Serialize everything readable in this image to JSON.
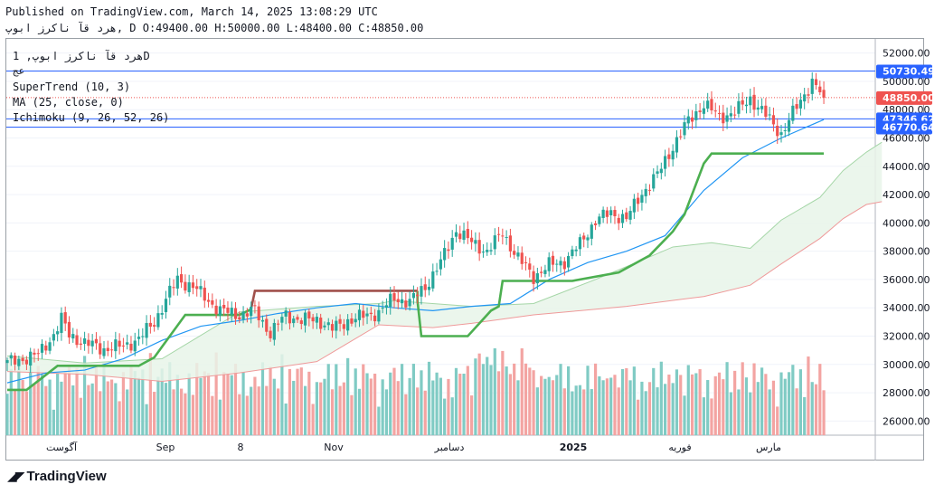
{
  "header": {
    "published": "Published on TradingView.com, March 14, 2025 13:08:29 UTC",
    "ohlc": "هرد قآ ناكرز ابوپ, D O:49400.00 H:50000.00 L:48400.00 C:48850.00"
  },
  "legend": {
    "symbol": "هرد قآ ناكرز ابوپ, 1D",
    "sub": "عج",
    "indicators": [
      "SuperTrend (10, 3)",
      "MA (25, close, 0)",
      "Ichimoku (9, 26, 52, 26)"
    ]
  },
  "branding": {
    "logo_text": "TradingView"
  },
  "colors": {
    "up": "#26a69a",
    "down": "#ef5350",
    "supertrend_up": "#4caf50",
    "supertrend_down": "#a0504b",
    "ma": "#2196f3",
    "cloud_fill": "#e8f5e9",
    "volume_up": "#80cbc4",
    "volume_down": "#f3a4a2",
    "hline": "#2962ff",
    "last_price": "#ef5350"
  },
  "chart_data": {
    "type": "candlestick",
    "ylim": [
      25000,
      53000
    ],
    "y_ticks": [
      "26000.00",
      "28000.00",
      "30000.00",
      "32000.00",
      "34000.00",
      "36000.00",
      "38000.00",
      "40000.00",
      "42000.00",
      "44000.00",
      "46000.00",
      "48000.00",
      "50000.00",
      "52000.00"
    ],
    "x_ticks": [
      "آگوست",
      "Sep",
      "8",
      "Nov",
      "دسامبر",
      "2025",
      "فوریه",
      "مارس"
    ],
    "price_labels": [
      {
        "value": 50730.49,
        "text": "50730.49",
        "color": "#2962ff"
      },
      {
        "value": 48850.0,
        "text": "48850.00",
        "color": "#ef5350"
      },
      {
        "value": 47346.62,
        "text": "47346.62",
        "color": "#2962ff"
      },
      {
        "value": 46770.64,
        "text": "46770.64",
        "color": "#2962ff"
      }
    ],
    "anchors": [
      [
        0,
        30100
      ],
      [
        8,
        30700
      ],
      [
        12,
        32100
      ],
      [
        14,
        33200
      ],
      [
        16,
        32100
      ],
      [
        20,
        31500
      ],
      [
        25,
        31100
      ],
      [
        30,
        31300
      ],
      [
        34,
        31800
      ],
      [
        38,
        33000
      ],
      [
        42,
        35100
      ],
      [
        44,
        36000
      ],
      [
        48,
        35500
      ],
      [
        52,
        34500
      ],
      [
        55,
        33800
      ],
      [
        60,
        33500
      ],
      [
        64,
        33800
      ],
      [
        68,
        32200
      ],
      [
        72,
        33500
      ],
      [
        76,
        33100
      ],
      [
        80,
        33200
      ],
      [
        84,
        32500
      ],
      [
        88,
        33100
      ],
      [
        92,
        33400
      ],
      [
        96,
        33700
      ],
      [
        100,
        34700
      ],
      [
        104,
        34400
      ],
      [
        108,
        35500
      ],
      [
        112,
        37200
      ],
      [
        116,
        39500
      ],
      [
        120,
        38600
      ],
      [
        124,
        38000
      ],
      [
        128,
        39300
      ],
      [
        132,
        37500
      ],
      [
        136,
        36200
      ],
      [
        140,
        37000
      ],
      [
        144,
        37300
      ],
      [
        148,
        38500
      ],
      [
        152,
        40200
      ],
      [
        156,
        40700
      ],
      [
        160,
        40300
      ],
      [
        164,
        42100
      ],
      [
        168,
        43400
      ],
      [
        172,
        45400
      ],
      [
        176,
        47200
      ],
      [
        180,
        48400
      ],
      [
        184,
        47500
      ],
      [
        188,
        47800
      ],
      [
        192,
        48800
      ],
      [
        196,
        47600
      ],
      [
        200,
        46300
      ],
      [
        204,
        48200
      ],
      [
        208,
        50000
      ],
      [
        211,
        48850
      ]
    ],
    "cloud": {
      "upper": [
        [
          0,
          30600
        ],
        [
          20,
          30100
        ],
        [
          40,
          30400
        ],
        [
          60,
          33700
        ],
        [
          80,
          34100
        ],
        [
          96,
          34300
        ],
        [
          100,
          34500
        ],
        [
          120,
          34100
        ],
        [
          136,
          34300
        ],
        [
          152,
          36000
        ],
        [
          166,
          37600
        ],
        [
          172,
          38300
        ],
        [
          182,
          38600
        ],
        [
          192,
          38200
        ],
        [
          200,
          40200
        ],
        [
          210,
          41800
        ],
        [
          216,
          43700
        ],
        [
          222,
          45000
        ],
        [
          226,
          45700
        ]
      ],
      "lower": [
        [
          0,
          29500
        ],
        [
          20,
          29300
        ],
        [
          40,
          28800
        ],
        [
          60,
          29400
        ],
        [
          80,
          30200
        ],
        [
          96,
          32800
        ],
        [
          110,
          32600
        ],
        [
          120,
          32900
        ],
        [
          136,
          33500
        ],
        [
          148,
          33800
        ],
        [
          160,
          34100
        ],
        [
          180,
          34800
        ],
        [
          192,
          35600
        ],
        [
          200,
          37100
        ],
        [
          210,
          38900
        ],
        [
          216,
          40300
        ],
        [
          222,
          41300
        ],
        [
          226,
          41500
        ]
      ]
    },
    "supertrend": [
      [
        0,
        28200
      ],
      [
        5,
        28200
      ],
      [
        13,
        29900
      ],
      [
        34,
        29900
      ],
      [
        38,
        30500
      ],
      [
        46,
        33500
      ],
      [
        60,
        33500
      ],
      [
        63,
        33900
      ],
      [
        64,
        35200
      ],
      [
        106,
        35200
      ],
      [
        106,
        34500
      ],
      [
        107,
        32000
      ],
      [
        119,
        32000
      ],
      [
        125,
        33800
      ],
      [
        127,
        34100
      ],
      [
        128,
        35900
      ],
      [
        146,
        35900
      ],
      [
        158,
        36500
      ],
      [
        166,
        37700
      ],
      [
        172,
        39400
      ],
      [
        175,
        40600
      ],
      [
        180,
        44200
      ],
      [
        182,
        44900
      ],
      [
        211,
        44900
      ]
    ],
    "ma": [
      [
        0,
        28700
      ],
      [
        10,
        29400
      ],
      [
        20,
        29600
      ],
      [
        30,
        30400
      ],
      [
        40,
        31700
      ],
      [
        50,
        32700
      ],
      [
        60,
        33100
      ],
      [
        70,
        33600
      ],
      [
        80,
        34000
      ],
      [
        90,
        34300
      ],
      [
        100,
        34000
      ],
      [
        110,
        33800
      ],
      [
        120,
        34100
      ],
      [
        130,
        34300
      ],
      [
        140,
        36000
      ],
      [
        150,
        37200
      ],
      [
        160,
        38000
      ],
      [
        170,
        39100
      ],
      [
        175,
        40700
      ],
      [
        180,
        42300
      ],
      [
        190,
        44600
      ],
      [
        200,
        46000
      ],
      [
        211,
        47300
      ]
    ]
  }
}
